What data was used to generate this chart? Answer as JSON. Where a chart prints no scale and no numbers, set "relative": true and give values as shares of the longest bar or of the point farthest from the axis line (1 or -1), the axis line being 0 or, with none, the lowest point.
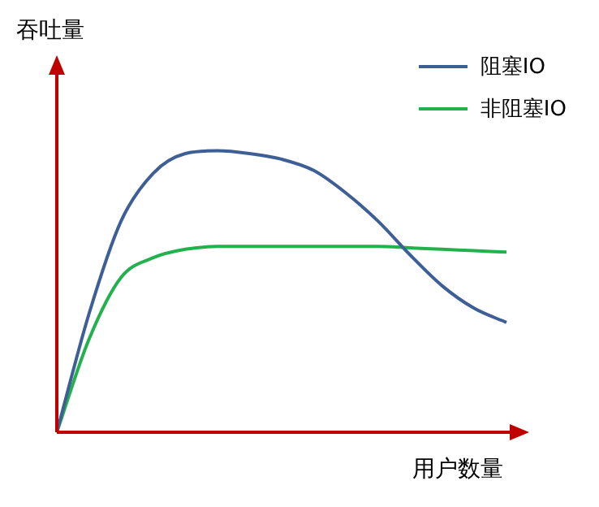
{
  "chart_data": {
    "type": "line",
    "relative": true,
    "xlabel": "用户数量",
    "ylabel": "吞吐量",
    "legend": "top right",
    "grid": false,
    "marker": "none",
    "categories": [
      null,
      null,
      null,
      null,
      null,
      null,
      null,
      null,
      null,
      null,
      null,
      null,
      null,
      null,
      null
    ],
    "series": [
      {
        "name": "阻塞IO",
        "color": "#3d5f95",
        "values": [
          0,
          0.42,
          0.75,
          0.92,
          0.99,
          1.0,
          0.99,
          0.97,
          0.93,
          0.85,
          0.75,
          0.63,
          0.52,
          0.44,
          0.39
        ]
      },
      {
        "name": "非阻塞IO",
        "color": "#22b14c",
        "values": [
          0,
          0.33,
          0.55,
          0.62,
          0.65,
          0.66,
          0.66,
          0.66,
          0.66,
          0.66,
          0.66,
          0.655,
          0.65,
          0.645,
          0.64
        ]
      }
    ]
  }
}
